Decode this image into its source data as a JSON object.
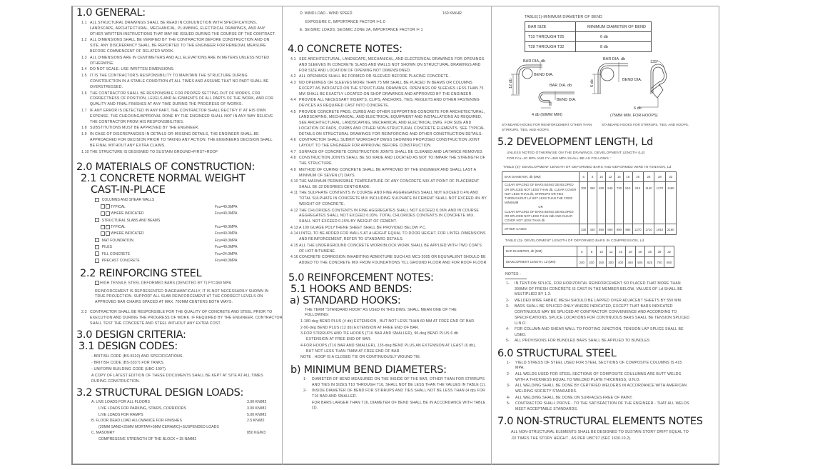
{
  "general": {
    "title": "1.0 GENERAL:",
    "notes": [
      {
        "num": "1.1",
        "text": "ALL STRUCTURAL DRAWINGS SHALL BE READ IN CONJUNCTION WITH SPECIFICATIONS, LANDSCAPE, ARCHITECTURAL, MECHANICAL, PLUMBING, ELECTRICAL DRAWINGS, AND ANY OTHER WRITTEN INSTRUCTIONS THAT MAY BE ISSUED DURING THE COURSE OF THE CONTRACT."
      },
      {
        "num": "1.2",
        "text": "ALL DIMENSIONS SHALL BE VERIFIED BY THE CONTRACTOR BEFORE CONSTRUCTION AND ON SITE. ANY DISCREPANCY SHALL BE REPORTED TO THE ENGINEER FOR REMEDIAL MEASURE BEFORE COMMENCENT OF RELATED WORK."
      },
      {
        "num": "1.3",
        "text": "ALL DIMENSIONS ARE IN CENTIMETERS AND ALL ELEVATIONS ARE IN METERS UNLESS NOTED OTHERWISE."
      },
      {
        "num": "1.4",
        "text": "DO NOT SCALE. USE WRITTEN DIMENSIONS."
      },
      {
        "num": "1.5",
        "text": "IT IS THE CONTRACTOR'S RESPONSIBILITY TO MAINTAIN THE STRUCTURE DURING CONSTRUCTION IN A STABLE CONDITION AT ALL TIMES AND ASSUME THAT NO PART SHALL BE OVERSTRESSED."
      },
      {
        "num": "1.6",
        "text": "THE CONTRACTOR SHALL BE RESPONSIBLE FOR PROPER SETTING OUT OF WORKS, FOR CORRECTNESS OF POSITION, LEVELS AND ALIGNMENTS OF ALL PARTS OF THE WORK, AND FOR QUALITY AND FINAL FINISHES AT ANY TIME DURING THE PROGRESS OF WORKS."
      },
      {
        "num": "1.7",
        "text": "IF ANY ERROR IS DETECTED IN ANY PART, THE CONTRACTOR SHALL RECTIFY IT AT HIS OWN EXPENSE. THE CHECKING/APPROVAL DONE BY THE ENGINEER SHALL NOT IN ANY WAY RELIEVE THE CONTRACTOR FROM HIS RESPONSIBILITIES."
      },
      {
        "num": "1.8",
        "text": "SUBSTITUTIONS MUST BE APPROVED BY THE ENGINEER."
      },
      {
        "num": "1.9",
        "text": "IN CASE OF DISCREPANCIES IN DETAILS OR MISSING DETAILS, THE ENGINEER SHALL BE APPROACHED FOR DECISION PRIOR TO TAKING ANY ACTION. THE ENGINEERS DECISION SHALL BE FINAL WITHOUT ANY EXTRA CLAIMS."
      },
      {
        "num": "1.10",
        "text": "THE STRUCTURE IS DESIGNED TO SUSTAIN   GROUND+FIRST+ROOF"
      }
    ]
  },
  "materials": {
    "title": "2.0 MATERIALS OF CONSTRUCTION:",
    "concrete_title": "2.1 CONCRETE NORMAL WEIGHT",
    "concrete_title_2": "CAST-IN-PLACE",
    "items": [
      {
        "label": "COLUMNS AND SHEAR WALLS",
        "value": "",
        "level": 1
      },
      {
        "label": "TYPICAL",
        "value": "Fcu=40.0MPA",
        "level": 2
      },
      {
        "label": "WHERE INDICATED",
        "value": "Fcu=40.0MPA",
        "level": 2
      },
      {
        "label": "STRUCTURAL SLABS AND BEAMS",
        "value": "",
        "level": 1
      },
      {
        "label": "TYPICAL",
        "value": "Fcu=40.0MPA",
        "level": 2
      },
      {
        "label": "WHERE INDICATED",
        "value": "Fcu=40.0MPA",
        "level": 2
      },
      {
        "label": "MAT FOUNDATION",
        "value": "Fcu=40.0MPA",
        "level": 1
      },
      {
        "label": "PILES",
        "value": "Fcu=40.0MPA",
        "level": 1
      },
      {
        "label": "FILL CONCRETE",
        "value": "Fcu=24.0MPA",
        "level": 1
      },
      {
        "label": "PRECAST CONCRETE",
        "value": "Fcu=40.0MPA",
        "level": 1
      }
    ],
    "steel_title": "2.2 REINFORCING STEEL",
    "steel_item": "HIGH TENSILE STEEL DEFORMED BARS (DENOTED BY T)    FY=460 MPA",
    "steel_text": "REINFORCEMENT IS REPRESENTED DIAGRAMATICALLY, IT IS NOT NECESSARILY SHOWN IN TRUE PROJECTION. SUPPORT ALL SLAB REINFORCEMENT AT THE CORRECT LEVELS ON APPROVED BAR CHAIRS SPACED AT MAX. 700MM CENTERS BOTH WAYS.",
    "note_2_3": {
      "num": "2.3",
      "text": "CONTRACTOR SHALL BE RESPONSIBLE FOR THE QUALITY OF CONCRETE AND STEEL PRIOR TO EXECUTION AND DURING THE PROGRESS OF WORK. IF REQUIRED BY THE ENGINEER, CONTRACTOR SHALL TEST THE CONCRETE AND STEEL WITHOUT ANY EXTRA COST."
    }
  },
  "design": {
    "title": "3.0 DESIGN CRITERIA:",
    "codes_title": "3.1 DESIGN CODES:",
    "codes": [
      "- BRITISH CODE (BS-8110) AND SPECIFICATIONS.",
      "- BRITISH CODE (BS-5337) FOR TANKS.",
      "- UNIFORM BUILDING CODE (UBC-1997).",
      "A COPY OF LATEST EDITION OF THESE DOCUMENTS SHALL BE KEPT AT SITE AT ALL TIMES DURING CONSTRUCTION."
    ],
    "loads_title": "3.2 STRUCTURAL DESIGN LOADS:",
    "loads": [
      {
        "label": "A. LIVE LOADS FOR ALL FLOORS",
        "value": "3.00 KN/M2",
        "indent": 0
      },
      {
        "label": "LIVE LOADS FOR PARKING, STAIRS, CORRIDORS",
        "value": "3.00 KN/M2",
        "indent": 1
      },
      {
        "label": "LIVE LOADS FOR RAMPS",
        "value": "5.00 KN/M2",
        "indent": 1
      },
      {
        "label": "B. FLOOR DEAD LOAD ALLOWANCE FOR FINISHES",
        "value": "2.5 KN/M2",
        "indent": 0
      },
      {
        "label": "(20MM SAND+25MM MORTAR+5MM CERAMIC)+SUSPENDED LOADS",
        "value": "",
        "indent": 1
      },
      {
        "label": "C. MASONRY",
        "value": "850 KG/M3",
        "indent": 0
      },
      {
        "label": "COMPRESSIVE STRENGTH OF THE BLOCK = 35  N/MM2",
        "value": "",
        "indent": 1
      }
    ],
    "wind": {
      "label": "D. WIND LOAD - WIND SPEED",
      "value": "160 KM/HR"
    },
    "exposure": "EXPOSURE C, IMPORTANCE FACTOR I=1.0",
    "seismic": "E. SEISMIC LOADS: SEISMIC ZONE 2A, IMPORTANCE FACTOR I= 1"
  },
  "concrete": {
    "title": "4.0 CONCRETE NOTES:",
    "notes": [
      {
        "num": "4.1",
        "text": "SEE ARCHITECTURAL, LANDSCAPE, MECHANICAL, AND ELECTERICAL DRAWINGS FOR OPENINGS AND SLEEVES IN CONCRETE SLABS AND WALLS NOT SHOWN ON STRUCTURAL DRAWINGS AND FOR SIZE AND LOCATION OF OPENING NOT DIMENSIONED."
      },
      {
        "num": "4.2",
        "text": "ALL OPENINGS SHALL BE FORMED OR SLEEVED BEFORE PLACING CONCRETE."
      },
      {
        "num": "4.3",
        "text": "NO OPENINGS OR SLEEVES MORE THAN 75 MM SHALL BE PLACED IN BEAMS OR COLUMNS EXCEPT AS INDICATED ON THE STRUCTURAL DRAWINGS. OPENINGS OR SLEEVES LESS THAN 75 MM SHALL BE EXACTLY LOCATED ON SHOP DRAWINGS AND APPROVED BY THE ENGINEER."
      },
      {
        "num": "4.4",
        "text": "PROVIDE ALL NECESSARY INSERTS, CLIPS, ANCHORS, TIES, REGLETS AND OTHER FASTENING DEVICES AS REQUIRED CAST INTO CONCRETE."
      },
      {
        "num": "4.5",
        "text": "PROVIDE CONCRETE PADS, CURBS AND OTHER SUPPORTING CONCRETE FOR ARCHETECTURAL, LANDSCAPING, MECHANICAL, AND ELECTRICAL EQUIPMENT AND INSTALLATIONS AS REQUIRED. SEE ARCHITECTURAL, LANDSCAPING, MECHANICAL AND ELECTRICAL DWG. FOR SIZE AND LOCATION OF PADS, CURBS AND OTHER NON-STRUCTURAL CONCRETE ELEMENTS. SEE TYPICAL DETAILS ON STRUCTURAL DRAWINGS FOR REINFORCING AND OTHER CONSTRUCTION DETAILS."
      },
      {
        "num": "4.6",
        "text": "CONTRACTOR SHALL SUBMIT WORKSHOP DWGS SHOWING PROPOSED CONSTRUCTION JOINT LAYOUT TO THE ENGINEER FOR APPROVAL BEFORE CONSTRUCTION."
      },
      {
        "num": "4.7",
        "text": "SURFACE OF CONCRETE CONSTRUCTION JOINTS SHALL BE CLEANED AND LAITANCE REMOVED."
      },
      {
        "num": "4.8",
        "text": "CONSTRUCTION JOINTS SHALL BE SO MADE AND LOCATED AS NOT TO IMPAIR THE STRENGTH OF THE STRUCTURE."
      },
      {
        "num": "4.9",
        "text": "METHOD OF CURING CONCRETE SHALL BE APPROVED BY THE ENGINEER AND SHALL LAST A MINIMUM OF SEVEN (7) DAYS."
      },
      {
        "num": "4.10",
        "text": "THE MAXIMUM PERMISSIBLE TEMPERATURE OF ANY CONCRETE MIX AT POINT OF PLACEMENT SHALL BE 32 DEGREES CENTIGRADE."
      },
      {
        "num": "4.11",
        "text": "THE SULPHATE CONTENTS IN COURSE AND FINE AGGREGATES SHALL NOT EXCEED 0.4% AND TOTAL SULPHATE IN CONCRETE MIX INCLUDING SULPHATE IN CEMENT SHALL NOT EXCEED 4% BY WEIGHT OF CONCRETE."
      },
      {
        "num": "4.12",
        "text": "THE CHLORIDES CONTENTS IN FINE AGGREGATES SHALL NOT EXCEED 0.06% AND IN COURSE AGGREGATES SHALL NOT EXCEED 0.03%. TOTAL CHLORIDES CONTENTS IN CONCRETE MIX. SHALL NOT EXCEED 0.15% BY WEIGHT OF CEMENT."
      },
      {
        "num": "4.13",
        "text": "A 100 GUAGE POLYTHENE SHEET SHALL BE PROVIDED BELOW P.C."
      },
      {
        "num": "4.14",
        "text": "LINTEL TO BE ADDED FOR WALLS AT A HEIGHT EQUAL TO DOOR HEIGHT. FOR LINTEL DIMENSIONS AND REINFORCEMENT, REFER TO STANDARD DETAILS."
      },
      {
        "num": "4.15",
        "text": "ALL THE UNDERGROUND CONCRETE WORK/BLOCK WORK SHALL BE APPLIED WITH TWO COATS OF HOT BITUMENE."
      },
      {
        "num": "4.16",
        "text": "CONCRETE CORROSION INHABITING ADMIXTURE SUCH AS MC1-2005 OR EQUIVALENT SHOULD BE ADDED TO THE CONCRETE MIX FROM FOUNDATIONS TILL GROUND FLOOR AND FOR ROOF FLOOR"
      }
    ]
  },
  "reinforcement": {
    "title": "5.0 REINFORCEMENT NOTES:",
    "hooks_title": "5.1 HOOKS AND BENDS:",
    "std_title": "a) STANDARD HOOKS:",
    "std_intro": "THE TERM \"STANDARD HOOK\" AS USED IN THIS DWG. SHALL MEAN ONE OF THE FOLLOWING:",
    "std_items": [
      "1-180-deg BEND PLUS (4 db) EXTENSION , BUT NOT LESS THAN 60 MM AT FREE END OF BAR.",
      "2-90-deg BEND PLUS (12 db) EXTENSION AT FREE END OF BAR.",
      "3-FOR STIRRUPS AND TIE HOOKS (T16 BAR AND SMALLER), 90-deg BEND PLUS 6 db EXTENSION AT FREE END OF BAR.",
      "4-FOR HOOPS (T16 BAR AND SMALLER), 135-deg BEND PLUS AN EXTENSION AT LEAST (6 db), BUT NOT LESS THAN 75MM AT FREE END OF BAR.",
      "NOTE : HOOP IS A CLOSED TIE OR CONTINUOUSLY WOUND TIE."
    ],
    "bend_title": "b) MINIMUM BEND DIAMETERS:",
    "bend_items": [
      {
        "num": "1-",
        "text": "DIAMETER OF BEND MEASURED ON THE INSIDE OF THE BAR, OTHER THAN FOR STIRRUPS AND TIES IN SIZES T10 THROUGH T16, SHALL NOT BE LESS THAN THE VALUES IN TABLE (1)."
      },
      {
        "num": "2-",
        "text": "INSIDE DIAMETER OF BEND FOR STIRRUPS AND TIES SHALL NOT BE LESS THAN (4 dp) FOR T16 BAR AND SMALLER."
      },
      {
        "num": "",
        "text": "FOR BARS LARGER THAN T16, DIAMETER OF BEND SHALL BE IN ACCORDANCE WITH TABLE (1)."
      }
    ]
  },
  "table1": {
    "title": "TABLE(1)-MINIMUM DIAMETER OF BEND",
    "headers": [
      "BAR SIZE",
      "MINIMUM DIAMETER OF BEND"
    ],
    "rows": [
      [
        "T10 THROUGH T25",
        "6 db"
      ],
      [
        "T28 THROUGH T32",
        "8 db"
      ]
    ]
  },
  "hooks_diagram": {
    "bar_dia": "BAR DIA.  db",
    "bend_dia": "BEND DIA.",
    "dim_12db": "12 db",
    "dim_4db": "4 db (60MM MIN)",
    "dim_6db": "6 db",
    "angle": "135°",
    "dim_6db_b": "6 db",
    "hoops_min": "(75MM MIN. FOR HOOPS)",
    "caption_left": "STANDARD HOOKS FOR REINFORCEMENT OTHER THAN STIRRUPS, TIES, AND HOOPS.",
    "caption_right": "STANDARD HOOKS FOR STIRRUPS, TIES, AND HOOPS."
  },
  "development": {
    "title": "5.2 DEVELOPMENT LENGTH, Ld",
    "intro": "UNLESS NOTED OTHERWISE ON THE DRAWINGS, DEVELOPMENT LENGTH (Ld)",
    "intro2": "FOR Fcu=40 MPA AND FY=460 MPA SHALL BE AS FOLLOWS :",
    "table2": {
      "title": "TABLE (2)- DEVELOPMENT LENGTH OF DEFORMED BARS AND DEFORMED WIRE IN TENSION, Ld",
      "header_label": "BAR   DIAMETER,  db (MM)",
      "diameters": [
        "6",
        "8",
        "10",
        "12",
        "16",
        "18",
        "20",
        "25",
        "28",
        "32"
      ],
      "row1_label": "CLEAR SPACING OF BARS BEING DEVELOPED OR SPLICED NOT LESS THAN db, CLEAR COVER NOT LESS THAN db, STIRRUPS OR TIES THROUGHOUT Ld NOT LESS THAN THE CODE MINIMUM",
      "row1_or": "OR",
      "row1_label2": "CLEAR SPACING OF BARS BEING DEVELOPED OR SPLICED NOT LESS THAN 2db AND CLEAR COVER NOT LESS THAN db",
      "row1_values": [
        "300",
        "360",
        "450",
        "540",
        "720",
        "810",
        "910",
        "1140",
        "1270",
        "1460"
      ],
      "row2_label": "OTHER CASES",
      "row2_values": [
        "330",
        "440",
        "550",
        "660",
        "880",
        "980",
        "1370",
        "1710",
        "1910",
        "2180"
      ]
    },
    "table3": {
      "title": "TABLE (3)- DEVELOPMENT LENGTH OF DEFORMED BARS IN COMPRESSION, Ld",
      "row1_label": "BAR DIAMETER, db (MM)",
      "row1_values": [
        "6",
        "8",
        "10",
        "12",
        "16",
        "18",
        "20",
        "25",
        "28",
        "32"
      ],
      "row2_label": "DEVELOPMENT LENGTH, Ld (MM)",
      "row2_values": [
        "200",
        "200",
        "250",
        "300",
        "400",
        "450",
        "500",
        "625",
        "700",
        "800"
      ]
    },
    "notes_title": "NOTES :",
    "notes": [
      {
        "num": "1-",
        "text": "IN TENTION SPLICE, FOR HORIZONTAL REINFORCEMENT SO PLACED THAT MORE THAN 300MM OF FRESH CONCRETE IS CAST IN THE MEMBER BELOW, VALUES OF Ld SHALL BE MULTIPLIED BY 1.3."
      },
      {
        "num": "2-",
        "text": "WELDED WIRE FABRIC MESH SHOULD BE LAPPED OVER ADJACENT SHEETS BY 550 MM."
      },
      {
        "num": "3-",
        "text": "BARS SHALL BE SPLICED ONLY WHERE INDICATED, EXCEPT THAT BARS INDICATED CONTINUOUS MAY BE SPLICED AT CONTRACTOR CONVENIENCE AND ACCORDING TO SPECIFICATIONS. SPLICE LOCATIONS FOR CONTINUOUS BARS SHALL BE TENSION SPLICED U.N.O."
      },
      {
        "num": "4-",
        "text": "FOR COLUMN AND SHEAR WALL TO  FOOTING JUNCTION, TENSION LAP SPLICE SHALL BE USED."
      },
      {
        "num": "5-",
        "text": "ALL PROVISIONS FOR BUNDLED BARS SHALL BE APPLIED TO BUNDLES"
      }
    ]
  },
  "steel": {
    "title": "6.0 STRUCTURAL STEEL",
    "notes": [
      {
        "num": "1-",
        "text": "YIELD STRESS OF STEEL USED FOR STEEL SECTIONS OF COMPOSITE COLUMNS IS 415 MPA."
      },
      {
        "num": "2-",
        "text": "ALL WELDS USED FOR STEEL SECTIONS OF COMPOSITE COULUMNS ARE BUTT WELDS WITH A THICKNESS EQUAL TO WELDED PLATE THICKNESS, U.N.O."
      },
      {
        "num": "3-",
        "text": "ALL WELDING SHALL BE DONE BY CERTIFIED WELDERS IN ACCORDANCE WITH AMERICAN WELDING SOCIETY STANDARDS."
      },
      {
        "num": "4-",
        "text": "ALL WELDING SHALL BE DONE ON SURFACES FREE OF PAINT."
      },
      {
        "num": "5-",
        "text": "CONTRACTOR SHALL PROVE - TO THE SATISFACTION OF THE ENGINEER - THAT ALL WELDS MEET ACCEPTABLE STANDARDS."
      }
    ]
  },
  "nonstructural": {
    "title": "7.0 NON-STRUCTURAL ELEMENTS NOTES",
    "text": "ALL NON-STRUCTURAL ELEMENTS SHALL BE DESIGNED TO SUSTAIN STORY DRIFT EQUAL TO .02 TIMES THE STORY HEIGHT , AS PER UBC'97 (SEC 1630.10.2)."
  }
}
